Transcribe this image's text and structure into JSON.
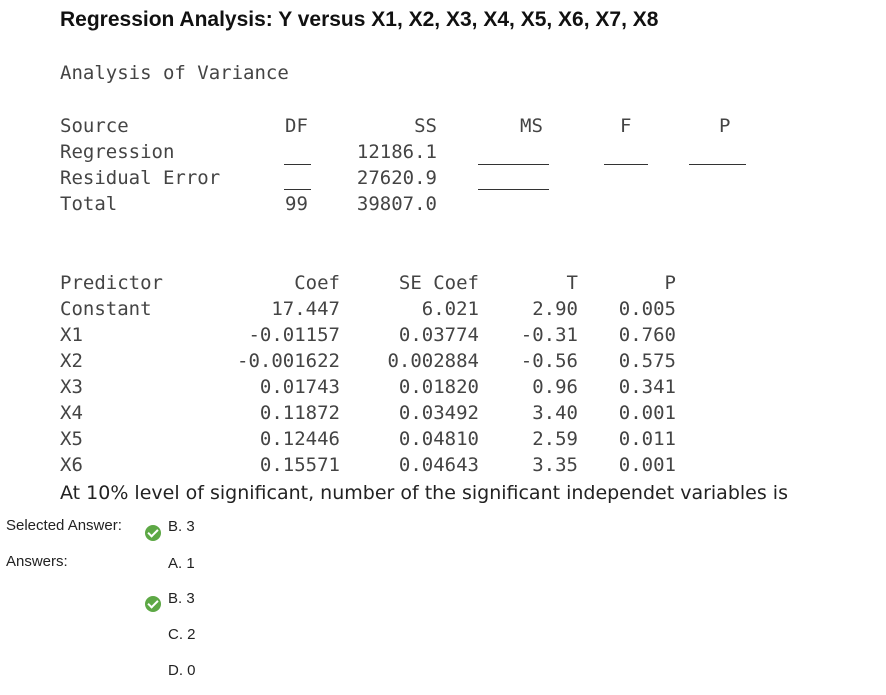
{
  "title": "Regression Analysis: Y versus X1, X2, X3, X4, X5, X6, X7, X8",
  "anova": {
    "heading": "Analysis of Variance",
    "headers": {
      "source": "Source",
      "df": "DF",
      "ss": "SS",
      "ms": "MS",
      "f": "F",
      "p": "P"
    },
    "rows": [
      {
        "source": "Regression",
        "df": "",
        "ss": "12186.1"
      },
      {
        "source": "Residual Error",
        "df": "",
        "ss": "27620.9"
      },
      {
        "source": "Total",
        "df": "99",
        "ss": "39807.0"
      }
    ]
  },
  "coef": {
    "headers": {
      "predictor": "Predictor",
      "coef": "Coef",
      "se": "SE Coef",
      "t": "T",
      "p": "P"
    },
    "rows": [
      {
        "predictor": "Constant",
        "coef": "17.447",
        "se": "6.021",
        "t": "2.90",
        "p": "0.005"
      },
      {
        "predictor": "X1",
        "coef": "-0.01157",
        "se": "0.03774",
        "t": "-0.31",
        "p": "0.760"
      },
      {
        "predictor": "X2",
        "coef": "-0.001622",
        "se": "0.002884",
        "t": "-0.56",
        "p": "0.575"
      },
      {
        "predictor": "X3",
        "coef": "0.01743",
        "se": "0.01820",
        "t": "0.96",
        "p": "0.341"
      },
      {
        "predictor": "X4",
        "coef": "0.11872",
        "se": "0.03492",
        "t": "3.40",
        "p": "0.001"
      },
      {
        "predictor": "X5",
        "coef": "0.12446",
        "se": "0.04810",
        "t": "2.59",
        "p": "0.011"
      },
      {
        "predictor": "X6",
        "coef": "0.15571",
        "se": "0.04643",
        "t": "3.35",
        "p": "0.001"
      }
    ]
  },
  "question": "At 10% level of significant, number of the significant independet variables is",
  "selected_label": "Selected Answer:",
  "selected_letter": "B.",
  "selected_value": "3",
  "answers_label": "Answers:",
  "answers": [
    {
      "letter": "A.",
      "value": "1",
      "correct": false
    },
    {
      "letter": "B.",
      "value": "3",
      "correct": true
    },
    {
      "letter": "C.",
      "value": "2",
      "correct": false
    },
    {
      "letter": "D.",
      "value": "0",
      "correct": false
    }
  ],
  "colors": {
    "check": "#5da845"
  }
}
